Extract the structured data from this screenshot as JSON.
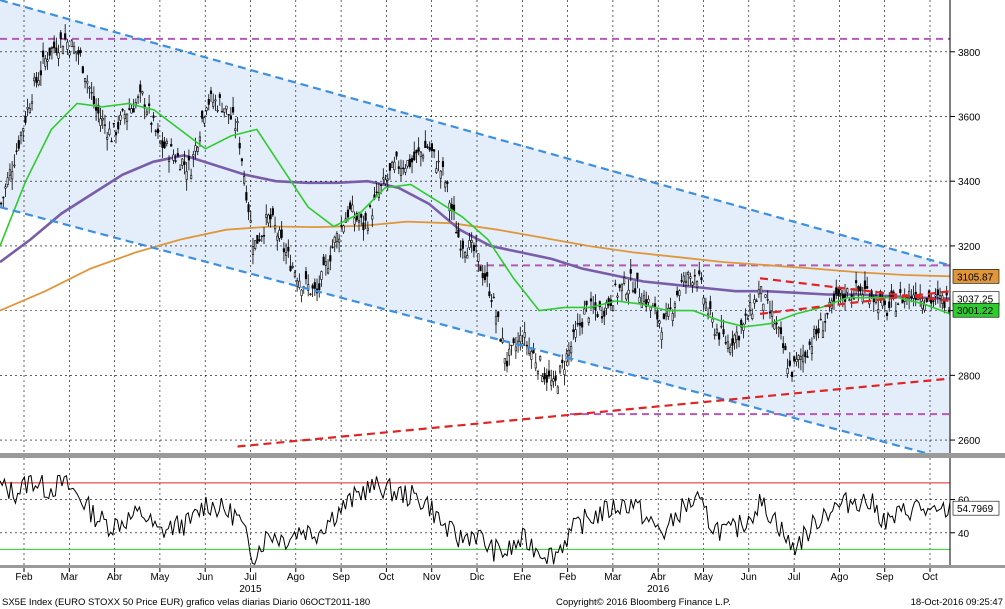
{
  "chart_data": {
    "type": "line",
    "title": "",
    "xlabel": "",
    "ylabel": "",
    "x_tick_labels": [
      "Feb",
      "Mar",
      "Abr",
      "May",
      "Jun",
      "Jul",
      "Ago",
      "Sep",
      "Oct",
      "Nov",
      "Dic",
      "Ene",
      "Feb",
      "Mar",
      "Abr",
      "May",
      "Jun",
      "Jul",
      "Ago",
      "Sep",
      "Oct"
    ],
    "year_labels": [
      "2015",
      "2016"
    ],
    "price_panel": {
      "ylim": [
        2560,
        3960
      ],
      "y_ticks": [
        2600,
        2800,
        3000,
        3200,
        3400,
        3600,
        3800
      ],
      "series": [
        {
          "name": "",
          "kind": "candles",
          "color": "#000000",
          "values": [
            3330,
            3500,
            3680,
            3800,
            3840,
            3790,
            3620,
            3540,
            3620,
            3660,
            3520,
            3480,
            3440,
            3650,
            3640,
            3560,
            3200,
            3290,
            3180,
            3090,
            3050,
            3200,
            3310,
            3260,
            3370,
            3450,
            3460,
            3510,
            3420,
            3220,
            3180,
            3060,
            2840,
            2920,
            2840,
            2760,
            2880,
            3000,
            3000,
            3060,
            3090,
            3020,
            2950,
            3080,
            3120,
            2960,
            2900,
            2950,
            3060,
            2960,
            2810,
            2880,
            2960,
            3040,
            3060,
            3060,
            3000,
            3040,
            3060,
            3030,
            3030
          ]
        },
        {
          "name": "",
          "kind": "sma50",
          "color": "#2ecc2e",
          "values": [
            3200,
            3400,
            3560,
            3640,
            3630,
            3640,
            3620,
            3560,
            3500,
            3540,
            3560,
            3440,
            3320,
            3260,
            3300,
            3380,
            3390,
            3340,
            3290,
            3220,
            3100,
            3000,
            3010,
            3010,
            3030,
            3020,
            3000,
            3000,
            2970,
            2950,
            2960,
            2990,
            3010,
            3040,
            3040,
            3040,
            3020,
            2990
          ]
        },
        {
          "name": "",
          "kind": "sma100",
          "color": "#7a5da8",
          "values": [
            3150,
            3220,
            3300,
            3360,
            3420,
            3460,
            3480,
            3450,
            3420,
            3400,
            3395,
            3395,
            3400,
            3380,
            3330,
            3250,
            3200,
            3180,
            3160,
            3130,
            3110,
            3090,
            3080,
            3070,
            3060,
            3060,
            3055,
            3050,
            3050,
            3045,
            3040,
            3037
          ]
        },
        {
          "name": "",
          "kind": "sma200",
          "color": "#e0963a",
          "values": [
            3000,
            3060,
            3130,
            3180,
            3220,
            3250,
            3260,
            3258,
            3262,
            3275,
            3270,
            3250,
            3225,
            3200,
            3180,
            3165,
            3150,
            3140,
            3130,
            3118,
            3110,
            3106
          ]
        }
      ],
      "trendlines": [
        {
          "name": "",
          "color": "#3d8fe0",
          "style": "dashed",
          "from": [
            0,
            3960
          ],
          "to": [
            60,
            3140
          ]
        },
        {
          "name": "",
          "color": "#3d8fe0",
          "style": "dashed",
          "from": [
            0,
            3320
          ],
          "to": [
            60,
            2540
          ]
        },
        {
          "name": "",
          "color": "#e02424",
          "style": "dashed",
          "from": [
            15,
            2580
          ],
          "to": [
            60,
            2790
          ]
        },
        {
          "name": "",
          "color": "#e02424",
          "style": "dashed",
          "from": [
            48,
            2990
          ],
          "to": [
            60,
            3060
          ]
        },
        {
          "name": "",
          "color": "#e02424",
          "style": "dashed",
          "from": [
            48,
            3100
          ],
          "to": [
            60,
            3030
          ]
        }
      ],
      "hlines": [
        {
          "value": 3840,
          "color": "#b45ab4",
          "from": 0
        },
        {
          "value": 3140,
          "color": "#b45ab4",
          "from": 30
        },
        {
          "value": 2680,
          "color": "#b45ab4",
          "from": 36
        }
      ],
      "value_labels": [
        {
          "text": "3105.87",
          "value": 3105.87,
          "bg": "#e0963a",
          "fg": "#000000"
        },
        {
          "text": "3037.25",
          "value": 3037.25,
          "bg": "#ffffff",
          "fg": "#000000"
        },
        {
          "text": "3001.22",
          "value": 3001.22,
          "bg": "#2ecc2e",
          "fg": "#000000"
        }
      ]
    },
    "rsi_panel": {
      "ylim": [
        20,
        85
      ],
      "y_ticks": [
        40,
        60
      ],
      "overbought": 70,
      "oversold": 30,
      "values": [
        68,
        64,
        72,
        66,
        70,
        62,
        50,
        44,
        48,
        52,
        40,
        44,
        46,
        58,
        54,
        50,
        26,
        40,
        36,
        42,
        40,
        50,
        58,
        66,
        68,
        64,
        62,
        58,
        44,
        36,
        40,
        30,
        28,
        36,
        30,
        26,
        40,
        48,
        52,
        56,
        58,
        46,
        40,
        54,
        60,
        44,
        40,
        46,
        58,
        48,
        30,
        40,
        52,
        56,
        60,
        58,
        46,
        52,
        56,
        50,
        54.8
      ],
      "value_label": {
        "text": "54.7969",
        "value": 54.7969
      }
    }
  },
  "footer": {
    "left": "SX5E Index (EURO STOXX 50 Price EUR) grafico velas diarias  Diario 06OCT2011-180",
    "center": "Copyright© 2016 Bloomberg Finance L.P.",
    "right": "18-Oct-2016 09:25:47"
  },
  "colors": {
    "background": "#ffffff",
    "channel_fill": "#e4eefa",
    "grid": "#000000",
    "overbought": "#e02424",
    "oversold": "#2ecc2e"
  }
}
